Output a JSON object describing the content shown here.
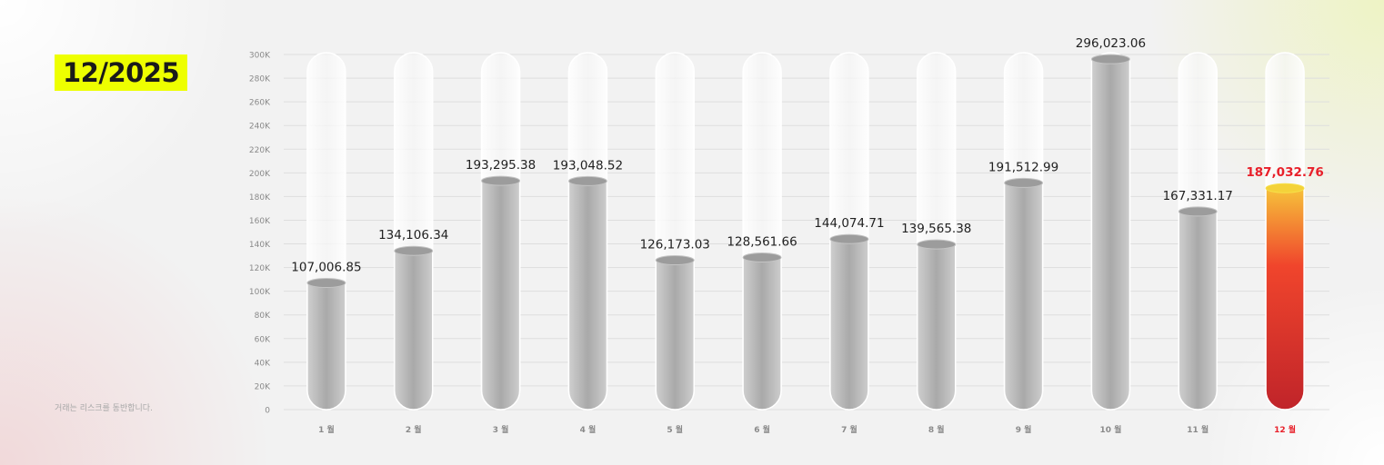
{
  "header": {
    "period": "12/2025"
  },
  "footer": {
    "disclaimer": "거래는 리스크를 동반합니다."
  },
  "colors": {
    "highlight_bg": "#eeff00",
    "highlight_label": "#e8202a",
    "bar_gray": "#b4b4b4"
  },
  "chart_data": {
    "type": "bar",
    "categories": [
      "1 월",
      "2 월",
      "3 월",
      "4 월",
      "5 월",
      "6 월",
      "7 월",
      "8 월",
      "9 월",
      "10 월",
      "11 월",
      "12 월"
    ],
    "values": [
      107006.85,
      134106.34,
      193295.38,
      193048.52,
      126173.03,
      128561.66,
      144074.71,
      139565.38,
      191512.99,
      296023.06,
      167331.17,
      187032.76
    ],
    "data_labels": [
      "107,006.85",
      "134,106.34",
      "193,295.38",
      "193,048.52",
      "126,173.03",
      "128,561.66",
      "144,074.71",
      "139,565.38",
      "191,512.99",
      "296,023.06",
      "167,331.17",
      "187,032.76"
    ],
    "highlighted_index": 11,
    "ylim": [
      0,
      300000
    ],
    "yticks": [
      "0",
      "20K",
      "40K",
      "60K",
      "80K",
      "100K",
      "120K",
      "140K",
      "160K",
      "180K",
      "200K",
      "220K",
      "240K",
      "260K",
      "280K",
      "300K"
    ],
    "grid": true,
    "legend": "none"
  }
}
